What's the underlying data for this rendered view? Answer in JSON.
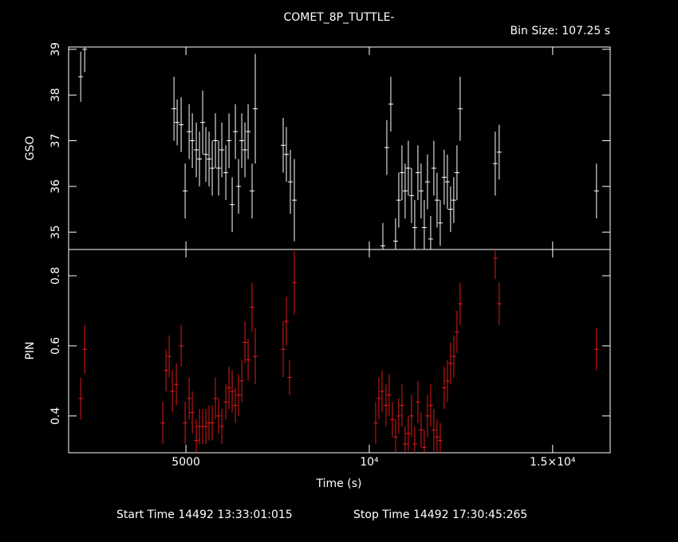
{
  "chart_data": [
    {
      "type": "errorbar",
      "title": "COMET_8P_TUTTLE-",
      "annotation": "Bin Size: 107.25 s",
      "ylabel": "GSO",
      "color": "#ffffff",
      "xlim": [
        1800,
        16570
      ],
      "xticks": [
        5000,
        10000,
        15000
      ],
      "ylim": [
        34.62,
        39.05
      ],
      "yticks": [
        35,
        36,
        37,
        38,
        39
      ],
      "x": [
        2130,
        2239,
        4674,
        4761,
        4869,
        4978,
        5087,
        5174,
        5282,
        5369,
        5456,
        5543,
        5630,
        5717,
        5804,
        5891,
        5978,
        6087,
        6174,
        6261,
        6348,
        6435,
        6522,
        6609,
        6696,
        6804,
        6891,
        7652,
        7739,
        7848,
        7956,
        10370,
        10478,
        10587,
        10717,
        10804,
        10891,
        10978,
        11065,
        11152,
        11239,
        11326,
        11413,
        11500,
        11587,
        11674,
        11761,
        11848,
        11935,
        12043,
        12130,
        12217,
        12304,
        12391,
        12478,
        13435,
        13543,
        16196
      ],
      "values": [
        38.4,
        39.0,
        37.7,
        37.4,
        37.35,
        35.9,
        37.2,
        37.0,
        36.8,
        36.6,
        37.4,
        36.7,
        36.6,
        36.4,
        37.0,
        36.4,
        36.8,
        36.3,
        37.0,
        35.6,
        37.2,
        36.0,
        37.0,
        36.8,
        37.2,
        35.9,
        37.7,
        36.9,
        36.7,
        36.1,
        35.7,
        34.7,
        36.85,
        37.8,
        34.8,
        35.7,
        36.3,
        35.9,
        36.4,
        35.8,
        35.1,
        36.3,
        35.9,
        35.1,
        36.1,
        34.85,
        36.4,
        35.7,
        35.2,
        36.2,
        36.1,
        35.5,
        35.7,
        36.3,
        37.7,
        36.5,
        36.75,
        35.9
      ],
      "errors": [
        0.55,
        0.5,
        0.7,
        0.5,
        0.6,
        0.6,
        0.6,
        0.6,
        0.6,
        0.6,
        0.7,
        0.6,
        0.6,
        0.6,
        0.6,
        0.6,
        0.6,
        0.6,
        0.6,
        0.6,
        0.6,
        0.6,
        0.6,
        0.6,
        0.6,
        0.6,
        1.2,
        0.6,
        0.6,
        0.7,
        0.9,
        0.5,
        0.6,
        0.6,
        0.5,
        0.6,
        0.6,
        0.6,
        0.6,
        0.6,
        0.6,
        0.6,
        0.6,
        0.6,
        0.6,
        0.5,
        0.6,
        0.6,
        0.5,
        0.6,
        0.6,
        0.5,
        0.5,
        0.6,
        0.7,
        0.7,
        0.6,
        0.6
      ]
    },
    {
      "type": "errorbar",
      "xlabel": "Time (s)",
      "ylabel": "PIN",
      "color": "#e01818",
      "start_time": "Start Time 14492 13:33:01:015",
      "stop_time": "Stop Time 14492 17:30:45:265",
      "xlim": [
        1800,
        16570
      ],
      "xticks": [
        5000,
        {
          "value": 10000,
          "label": "10⁴"
        },
        {
          "value": 15000,
          "label": "1.5×10⁴"
        }
      ],
      "ylim": [
        0.295,
        0.875
      ],
      "yticks": [
        0.4,
        0.6,
        0.8
      ],
      "x": [
        2130,
        2239,
        4369,
        4456,
        4543,
        4630,
        4739,
        4869,
        4978,
        5087,
        5174,
        5282,
        5369,
        5456,
        5543,
        5630,
        5717,
        5804,
        5891,
        5978,
        6087,
        6174,
        6261,
        6348,
        6435,
        6522,
        6609,
        6696,
        6804,
        6891,
        7652,
        7739,
        7826,
        7956,
        10174,
        10261,
        10348,
        10456,
        10543,
        10630,
        10717,
        10804,
        10891,
        10978,
        11065,
        11152,
        11239,
        11326,
        11413,
        11500,
        11587,
        11674,
        11761,
        11848,
        11935,
        12043,
        12130,
        12217,
        12304,
        12391,
        12478,
        13435,
        13543,
        16196
      ],
      "values": [
        0.45,
        0.59,
        0.38,
        0.53,
        0.57,
        0.47,
        0.49,
        0.6,
        0.38,
        0.45,
        0.41,
        0.33,
        0.37,
        0.37,
        0.37,
        0.38,
        0.38,
        0.45,
        0.4,
        0.37,
        0.44,
        0.48,
        0.47,
        0.43,
        0.46,
        0.5,
        0.61,
        0.56,
        0.71,
        0.57,
        0.59,
        0.67,
        0.51,
        0.78,
        0.38,
        0.45,
        0.47,
        0.43,
        0.46,
        0.39,
        0.34,
        0.4,
        0.43,
        0.32,
        0.35,
        0.4,
        0.32,
        0.44,
        0.36,
        0.31,
        0.4,
        0.43,
        0.36,
        0.34,
        0.33,
        0.48,
        0.5,
        0.55,
        0.57,
        0.64,
        0.72,
        0.85,
        0.72,
        0.59
      ],
      "errors": [
        0.06,
        0.07,
        0.06,
        0.06,
        0.06,
        0.06,
        0.06,
        0.06,
        0.06,
        0.06,
        0.06,
        0.06,
        0.05,
        0.05,
        0.05,
        0.05,
        0.05,
        0.06,
        0.05,
        0.05,
        0.05,
        0.06,
        0.06,
        0.05,
        0.06,
        0.06,
        0.06,
        0.06,
        0.07,
        0.08,
        0.08,
        0.07,
        0.05,
        0.09,
        0.06,
        0.06,
        0.06,
        0.06,
        0.06,
        0.05,
        0.05,
        0.05,
        0.06,
        0.05,
        0.05,
        0.06,
        0.05,
        0.06,
        0.05,
        0.05,
        0.06,
        0.06,
        0.06,
        0.05,
        0.05,
        0.06,
        0.06,
        0.06,
        0.06,
        0.06,
        0.06,
        0.06,
        0.06,
        0.06
      ]
    }
  ]
}
